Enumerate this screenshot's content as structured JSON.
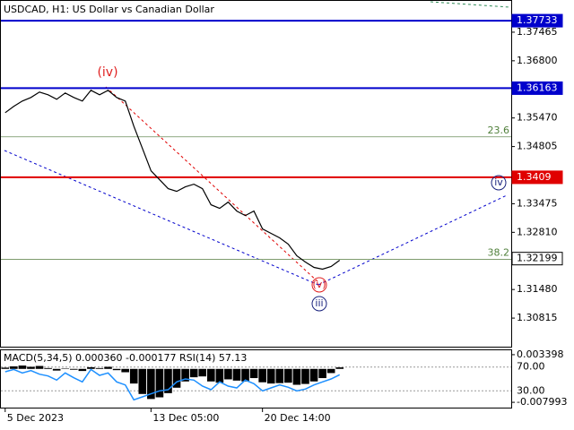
{
  "chart_data": [
    {
      "type": "line",
      "title": "USDCAD, H1:  US Dollar vs Canadian Dollar",
      "x": [
        0,
        1,
        2,
        3,
        4,
        5,
        6,
        7,
        8,
        9,
        10,
        11,
        12,
        13,
        14,
        15,
        16,
        17,
        18,
        19,
        20,
        21,
        22,
        23,
        24,
        25,
        26,
        27,
        28,
        29,
        30,
        31,
        32,
        33,
        34,
        35,
        36,
        37,
        38,
        39
      ],
      "values": [
        1.35593,
        1.35739,
        1.35863,
        1.35947,
        1.36071,
        1.36009,
        1.35905,
        1.36051,
        1.35947,
        1.35863,
        1.36113,
        1.36009,
        1.36113,
        1.35947,
        1.35863,
        1.35281,
        1.34761,
        1.34241,
        1.34033,
        1.33825,
        1.33763,
        1.33867,
        1.33929,
        1.33825,
        1.33451,
        1.33367,
        1.33513,
        1.33305,
        1.33201,
        1.33305,
        1.32889,
        1.32785,
        1.32681,
        1.32535,
        1.32265,
        1.32119,
        1.31995,
        1.31953,
        1.32015,
        1.32161
      ],
      "color": "#000000",
      "xlim": [
        -0.5,
        59
      ],
      "xticks": [
        {
          "value": 0,
          "label": "5 Dec 2023"
        },
        {
          "value": 17,
          "label": "13 Dec 05:00"
        },
        {
          "value": 30,
          "label": "20 Dec 14:00"
        }
      ],
      "ylim": [
        1.3015,
        1.38193
      ],
      "yticks": [
        1.37465,
        {
          "value": 1.368,
          "label": "1.36800"
        },
        {
          "value": 1.3547,
          "label": "1.35470"
        },
        1.34805,
        1.33475,
        {
          "value": 1.3281,
          "label": "1.32810"
        },
        {
          "value": 1.3148,
          "label": "1.31480"
        },
        1.30815
      ],
      "levels": [
        {
          "value": 1.37733,
          "color": "#0000cc"
        },
        {
          "value": 1.36163,
          "color": "#0000cc"
        },
        {
          "value": 1.3409,
          "color": "#e00000"
        },
        {
          "value": 1.32199,
          "color": "#ffffff"
        }
      ],
      "fib_levels": [
        {
          "value": 1.35031,
          "label": "23.6"
        },
        {
          "value": 1.3218,
          "label": "38.2"
        }
      ],
      "annotations": [
        {
          "text": "(iv)",
          "color": "#e02020"
        },
        {
          "text": "(v)",
          "color": "#e02020"
        },
        {
          "text": "iii",
          "color": "#1a237e"
        },
        {
          "text": "iv",
          "color": "#1a237e"
        }
      ]
    },
    {
      "type": "bar",
      "title": "MACD(5,34,5) 0.000360 -0.000177 RSI(14) 57.13",
      "x": [
        0,
        1,
        2,
        3,
        4,
        5,
        6,
        7,
        8,
        9,
        10,
        11,
        12,
        13,
        14,
        15,
        16,
        17,
        18,
        19,
        20,
        21,
        22,
        23,
        24,
        25,
        26,
        27,
        28,
        29,
        30,
        31,
        32,
        33,
        34,
        35,
        36,
        37,
        38,
        39
      ],
      "values": [
        0.0003,
        0.0006,
        0.0008,
        0.0005,
        0.0007,
        0.0002,
        -0.0004,
        0.0001,
        -0.0002,
        -0.0005,
        0.0004,
        0.0002,
        0.0005,
        -0.0003,
        -0.0008,
        -0.0035,
        -0.006,
        -0.0072,
        -0.0068,
        -0.0058,
        -0.0045,
        -0.003,
        -0.002,
        -0.0018,
        -0.003,
        -0.0033,
        -0.0025,
        -0.0028,
        -0.003,
        -0.0022,
        -0.0032,
        -0.0035,
        -0.0034,
        -0.0033,
        -0.0038,
        -0.0036,
        -0.003,
        -0.0022,
        -0.001,
        0.00036
      ],
      "color": "#000000",
      "series": [
        {
          "color": "#1e90ff",
          "axis": "y2",
          "values": [
            62,
            66,
            60,
            64,
            58,
            55,
            48,
            60,
            52,
            45,
            66,
            56,
            60,
            45,
            40,
            15,
            20,
            25,
            30,
            32,
            45,
            50,
            48,
            38,
            32,
            45,
            38,
            35,
            48,
            42,
            30,
            35,
            40,
            36,
            30,
            33,
            40,
            45,
            50,
            57.13
          ]
        }
      ],
      "xlim": [
        -0.5,
        59
      ],
      "ylim": [
        -0.009259,
        0.004453
      ],
      "yticks": [
        0.003398,
        -0.007993
      ],
      "y2lim": [
        1.9,
        98.1
      ],
      "y2ticks": [
        {
          "value": 70,
          "label": "70.00"
        },
        {
          "value": 30,
          "label": "30.00"
        }
      ]
    }
  ]
}
